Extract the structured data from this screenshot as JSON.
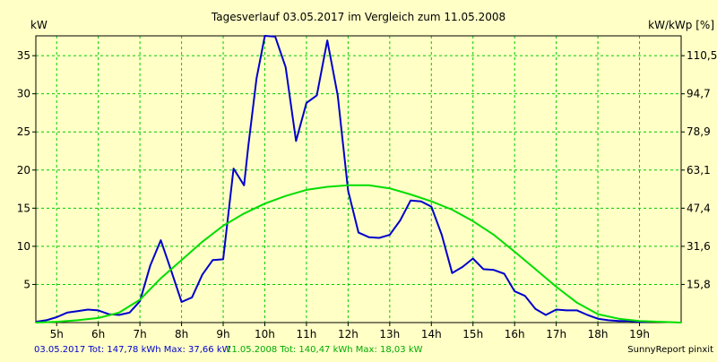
{
  "chart_data": {
    "type": "line",
    "title": "Tagesverlauf 03.05.2017 im Vergleich zum 11.05.2008",
    "ylabel_left": "kW",
    "ylabel_right": "kW/kWp [%]",
    "x_ticks": [
      "5h",
      "6h",
      "7h",
      "8h",
      "9h",
      "10h",
      "11h",
      "12h",
      "13h",
      "14h",
      "15h",
      "16h",
      "17h",
      "18h",
      "19h"
    ],
    "y_ticks_left": [
      5,
      10,
      15,
      20,
      25,
      30,
      35
    ],
    "y_ticks_right": [
      "15,8",
      "31,6",
      "47,4",
      "63,1",
      "78,9",
      "94,7",
      "110,5"
    ],
    "xlim": [
      4.5,
      20.0
    ],
    "ylim": [
      0,
      37.6
    ],
    "grid": true,
    "series": [
      {
        "name": "03.05.2017",
        "color": "#0000cc",
        "x": [
          4.5,
          4.75,
          5.0,
          5.25,
          5.5,
          5.75,
          6.0,
          6.25,
          6.5,
          6.75,
          7.0,
          7.25,
          7.5,
          7.75,
          8.0,
          8.25,
          8.5,
          8.75,
          9.0,
          9.25,
          9.5,
          9.6,
          9.8,
          10.0,
          10.25,
          10.5,
          10.75,
          11.0,
          11.25,
          11.5,
          11.75,
          12.0,
          12.25,
          12.5,
          12.75,
          13.0,
          13.25,
          13.5,
          13.75,
          14.0,
          14.25,
          14.5,
          14.75,
          15.0,
          15.25,
          15.5,
          15.75,
          16.0,
          16.25,
          16.5,
          16.75,
          17.0,
          17.25,
          17.5,
          17.75,
          18.0,
          18.25,
          18.5,
          18.75,
          19.0,
          19.25
        ],
        "y": [
          0.1,
          0.3,
          0.7,
          1.3,
          1.5,
          1.7,
          1.6,
          1.1,
          1.0,
          1.3,
          2.8,
          7.5,
          10.8,
          6.8,
          2.7,
          3.3,
          6.3,
          8.2,
          8.3,
          20.2,
          18.0,
          23.0,
          32.0,
          37.6,
          37.5,
          33.5,
          23.8,
          28.8,
          29.8,
          37.0,
          29.8,
          17.3,
          11.8,
          11.2,
          11.1,
          11.5,
          13.4,
          16.0,
          15.9,
          15.2,
          11.5,
          6.5,
          7.3,
          8.4,
          7.0,
          6.9,
          6.4,
          4.1,
          3.5,
          1.8,
          1.0,
          1.7,
          1.6,
          1.6,
          1.0,
          0.5,
          0.3,
          0.2,
          0.2,
          0.1,
          0.1
        ]
      },
      {
        "name": "11.05.2008",
        "color": "#00dd00",
        "x": [
          4.5,
          5.0,
          5.5,
          6.0,
          6.5,
          7.0,
          7.5,
          8.0,
          8.5,
          9.0,
          9.5,
          10.0,
          10.5,
          11.0,
          11.5,
          12.0,
          12.5,
          13.0,
          13.5,
          14.0,
          14.5,
          15.0,
          15.5,
          16.0,
          16.5,
          17.0,
          17.5,
          18.0,
          18.5,
          19.0,
          19.5,
          20.0
        ],
        "y": [
          0.0,
          0.1,
          0.3,
          0.6,
          1.3,
          3.0,
          5.8,
          8.2,
          10.6,
          12.7,
          14.3,
          15.6,
          16.6,
          17.4,
          17.8,
          18.0,
          18.0,
          17.6,
          16.8,
          15.9,
          14.8,
          13.3,
          11.5,
          9.3,
          7.0,
          4.7,
          2.6,
          1.1,
          0.5,
          0.2,
          0.1,
          0.0
        ]
      }
    ]
  },
  "footer": {
    "series1_text": "03.05.2017 Tot: 147,78 kWh Max: 37,66 kW",
    "series2_text": "11.05.2008 Tot: 140,47 kWh Max: 18,03 kW",
    "credit": "SunnyReport pinxit"
  },
  "colors": {
    "background": "#ffffc6",
    "grid": "#00cc00",
    "axis": "#000000"
  }
}
